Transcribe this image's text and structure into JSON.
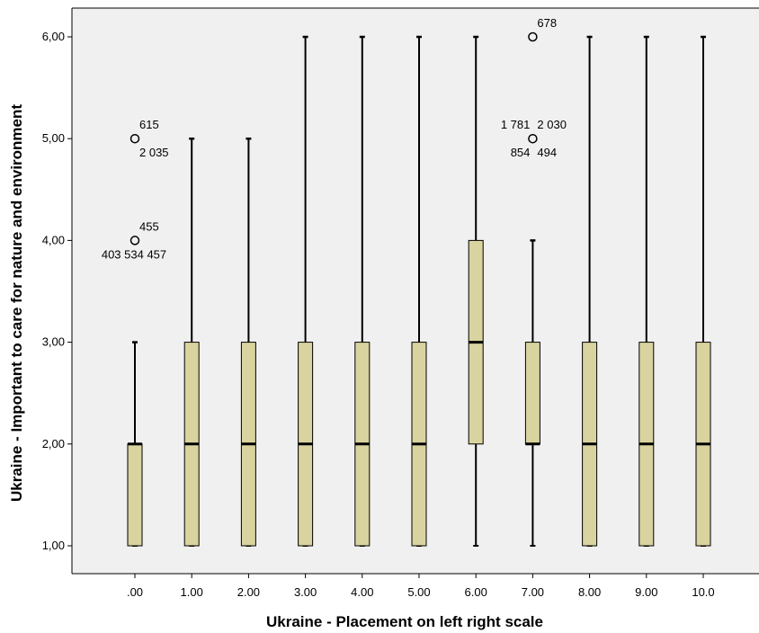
{
  "chart_data": {
    "type": "boxplot",
    "xlabel": "Ukraine - Placement on left right scale",
    "ylabel": "Ukraine - Important to care for nature and environment",
    "ylim": [
      1,
      6
    ],
    "yticks": [
      "1,00",
      "2,00",
      "3,00",
      "4,00",
      "5,00",
      "6,00"
    ],
    "grid": false,
    "colors": {
      "box_fill": "#D9D39F",
      "plot_bg": "#F0F0F0",
      "outline": "#000000"
    },
    "categories": [
      ".00",
      "1.00",
      "2.00",
      "3.00",
      "4.00",
      "5.00",
      "6.00",
      "7.00",
      "8.00",
      "9.00",
      "10.0"
    ],
    "boxes": [
      {
        "category": ".00",
        "min": 1,
        "q1": 1,
        "median": 2,
        "q3": 2,
        "max": 3
      },
      {
        "category": "1.00",
        "min": 1,
        "q1": 1,
        "median": 2,
        "q3": 3,
        "max": 5
      },
      {
        "category": "2.00",
        "min": 1,
        "q1": 1,
        "median": 2,
        "q3": 3,
        "max": 5
      },
      {
        "category": "3.00",
        "min": 1,
        "q1": 1,
        "median": 2,
        "q3": 3,
        "max": 6
      },
      {
        "category": "4.00",
        "min": 1,
        "q1": 1,
        "median": 2,
        "q3": 3,
        "max": 6
      },
      {
        "category": "5.00",
        "min": 1,
        "q1": 1,
        "median": 2,
        "q3": 3,
        "max": 6
      },
      {
        "category": "6.00",
        "min": 1,
        "q1": 2,
        "median": 3,
        "q3": 4,
        "max": 6
      },
      {
        "category": "7.00",
        "min": 1,
        "q1": 2,
        "median": 2,
        "q3": 3,
        "max": 4
      },
      {
        "category": "8.00",
        "min": 1,
        "q1": 1,
        "median": 2,
        "q3": 3,
        "max": 6
      },
      {
        "category": "9.00",
        "min": 1,
        "q1": 1,
        "median": 2,
        "q3": 3,
        "max": 6
      },
      {
        "category": "10.0",
        "min": 1,
        "q1": 1,
        "median": 2,
        "q3": 3,
        "max": 6
      }
    ],
    "outliers": [
      {
        "category": ".00",
        "y": 5,
        "labels": [
          {
            "text": "615",
            "pos": "above-right"
          },
          {
            "text": "2 035",
            "pos": "below-right"
          }
        ]
      },
      {
        "category": ".00",
        "y": 4,
        "labels": [
          {
            "text": "455",
            "pos": "above-right"
          },
          {
            "text": "403 534 457",
            "pos": "below-center"
          }
        ]
      },
      {
        "category": "7.00",
        "y": 6,
        "labels": [
          {
            "text": "678",
            "pos": "above-right"
          }
        ]
      },
      {
        "category": "7.00",
        "y": 5,
        "labels": [
          {
            "text": "1 781",
            "pos": "above-left"
          },
          {
            "text": "2 030",
            "pos": "above-right"
          },
          {
            "text": "854",
            "pos": "below-left"
          },
          {
            "text": "494",
            "pos": "below-right"
          }
        ]
      }
    ]
  }
}
